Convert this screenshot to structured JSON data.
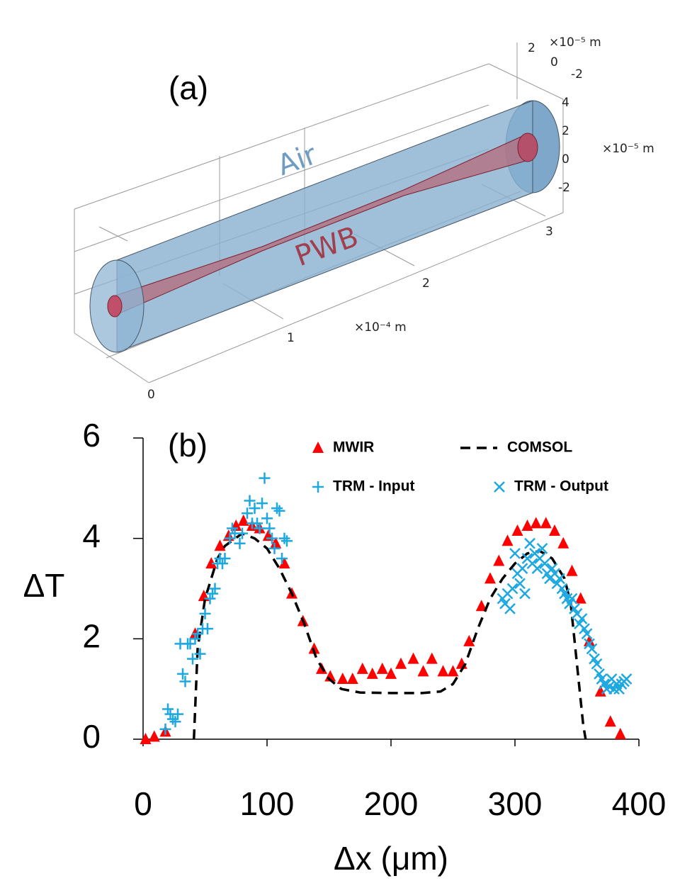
{
  "panel_a": {
    "label": "(a)",
    "air_label": "Air",
    "pwb_label": "PWB",
    "x_ticks": [
      "0",
      "1",
      "2",
      "3"
    ],
    "x_unit": "×10⁻⁴ m",
    "y_ticks": [
      "2",
      "0",
      "-2"
    ],
    "y_unit": "×10⁻⁵ m",
    "z_ticks": [
      "4",
      "2",
      "0",
      "-2"
    ],
    "z_unit": "×10⁻⁵ m"
  },
  "chart_data": {
    "type": "scatter",
    "annotation": "(b)",
    "x_label": "Δx (μm)",
    "y_label": "ΔT",
    "xlim": [
      0,
      400
    ],
    "xticks": [
      0,
      100,
      200,
      300,
      400
    ],
    "ylim": [
      0,
      6
    ],
    "yticks": [
      0,
      2,
      4,
      6
    ],
    "grid": false,
    "legend": "upper right",
    "series": [
      {
        "name": "MWIR",
        "color": "#ff0000",
        "marker": "triangle",
        "x": [
          2,
          9,
          18,
          42,
          49,
          55,
          62,
          69,
          75,
          81,
          88,
          94,
          101,
          107,
          114,
          120,
          129,
          138,
          144,
          151,
          161,
          169,
          177,
          185,
          193,
          200,
          208,
          218,
          226,
          233,
          242,
          250,
          257,
          263,
          273,
          280,
          287,
          294,
          302,
          310,
          317,
          325,
          332,
          339,
          346,
          353,
          360,
          369,
          377,
          385
        ],
        "values": [
          0,
          0.05,
          0.15,
          2.1,
          2.85,
          3.5,
          3.85,
          4.05,
          4.25,
          4.35,
          4.25,
          4.2,
          4.05,
          3.9,
          3.5,
          2.9,
          2.35,
          1.8,
          1.4,
          1.25,
          1.2,
          1.2,
          1.4,
          1.3,
          1.4,
          1.3,
          1.5,
          1.6,
          1.35,
          1.6,
          1.35,
          1.35,
          1.5,
          1.95,
          2.65,
          3.2,
          3.55,
          3.95,
          4.15,
          4.25,
          4.3,
          4.3,
          4.15,
          3.9,
          3.35,
          2.8,
          1.95,
          0.95,
          0.35,
          0.1
        ]
      },
      {
        "name": "COMSOL",
        "color": "#000000",
        "marker": "dashed-line",
        "x": [
          41,
          44,
          50,
          60,
          66,
          80,
          90,
          100,
          110,
          120,
          130,
          140,
          150,
          160,
          175,
          200,
          225,
          240,
          250,
          260,
          270,
          280,
          290,
          300,
          310,
          320,
          330,
          340,
          345,
          350,
          355,
          357
        ],
        "values": [
          0,
          1.8,
          2.8,
          3.6,
          3.85,
          4.1,
          4.0,
          3.8,
          3.4,
          2.9,
          2.3,
          1.6,
          1.2,
          1.0,
          0.93,
          0.92,
          0.92,
          0.95,
          1.1,
          1.5,
          2.2,
          2.8,
          3.2,
          3.5,
          3.7,
          3.75,
          3.6,
          3.2,
          2.7,
          1.5,
          0.3,
          0
        ]
      },
      {
        "name": "TRM - Input",
        "color": "#1ea8e0",
        "marker": "plus",
        "x": [
          18,
          20,
          22,
          24,
          26,
          28,
          30,
          32,
          34,
          36,
          38,
          40,
          42,
          44,
          46,
          48,
          50,
          52,
          54,
          56,
          58,
          60,
          62,
          64,
          66,
          70,
          72,
          74,
          78,
          80,
          84,
          86,
          88,
          90,
          92,
          94,
          96,
          98,
          100,
          102,
          104,
          106,
          108,
          110,
          112,
          114,
          116
        ],
        "values": [
          0.2,
          0.6,
          0.5,
          0.4,
          0.35,
          0.5,
          1.9,
          1.3,
          1.15,
          1.9,
          1.9,
          1.6,
          2.0,
          2.1,
          1.7,
          2.2,
          2.5,
          2.2,
          2.8,
          2.9,
          3.0,
          3.5,
          3.6,
          3.5,
          3.6,
          4.0,
          4.2,
          4.1,
          3.9,
          4.1,
          4.5,
          4.75,
          4.3,
          4.6,
          4.3,
          4.2,
          4.7,
          5.2,
          4.4,
          4.2,
          4.0,
          3.8,
          4.6,
          4.55,
          3.6,
          4.0,
          3.95
        ]
      },
      {
        "name": "TRM - Output",
        "color": "#1ea8e0",
        "marker": "cross",
        "x": [
          290,
          292,
          294,
          296,
          298,
          300,
          302,
          304,
          306,
          308,
          310,
          312,
          314,
          316,
          318,
          320,
          322,
          324,
          326,
          328,
          330,
          332,
          334,
          336,
          338,
          340,
          342,
          344,
          346,
          348,
          350,
          352,
          354,
          356,
          358,
          360,
          362,
          364,
          366,
          368,
          370,
          372,
          374,
          376,
          378,
          380,
          382,
          384,
          386,
          388,
          390
        ],
        "values": [
          2.8,
          2.7,
          2.9,
          2.6,
          3.0,
          3.7,
          3.3,
          3.1,
          3.4,
          2.9,
          3.6,
          3.9,
          3.5,
          3.7,
          3.4,
          3.6,
          3.8,
          3.5,
          3.3,
          3.2,
          3.4,
          3.3,
          3.1,
          3.2,
          3.0,
          2.9,
          2.8,
          2.7,
          2.8,
          2.6,
          2.5,
          2.3,
          2.4,
          2.2,
          2.1,
          1.9,
          1.8,
          1.6,
          1.5,
          1.3,
          1.2,
          1.1,
          1.0,
          1.05,
          1.2,
          1.0,
          1.1,
          1.0,
          1.1,
          1.15,
          1.2
        ]
      }
    ]
  }
}
